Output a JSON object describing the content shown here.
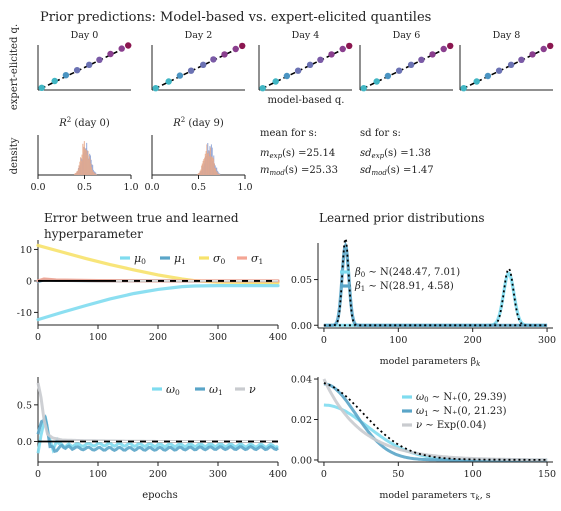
{
  "figure": {
    "title": "Prior predictions: Model-based vs. expert-elicited quantiles",
    "colors": {
      "mu0": "#7fdcef",
      "mu1": "#5aa5c8",
      "sigma0": "#f7e26b",
      "sigma1": "#f4a594",
      "omega0": "#7fdcef",
      "omega1": "#5aa5c8",
      "nu": "#c9cbcf",
      "scatter": [
        "#41b6c4",
        "#4a94c2",
        "#6b72b3",
        "#7a5aa6",
        "#8a3f8e",
        "#8b1650"
      ],
      "hist_exp": "#e8a98a",
      "hist_mod": "#8ea3d6",
      "ref": "#000000"
    }
  },
  "chart_data": [
    {
      "id": "qq",
      "type": "scatter",
      "ylabel": "expert-elicited q.",
      "xlabel": "model-based q.",
      "panels": [
        {
          "title": "Day 0",
          "points": [
            [
              0.04,
              0.05
            ],
            [
              0.18,
              0.2
            ],
            [
              0.3,
              0.33
            ],
            [
              0.42,
              0.44
            ],
            [
              0.55,
              0.56
            ],
            [
              0.66,
              0.67
            ],
            [
              0.78,
              0.8
            ],
            [
              0.9,
              0.92
            ],
            [
              0.97,
              0.99
            ]
          ]
        },
        {
          "title": "Day 2",
          "points": [
            [
              0.04,
              0.04
            ],
            [
              0.18,
              0.19
            ],
            [
              0.3,
              0.32
            ],
            [
              0.42,
              0.43
            ],
            [
              0.55,
              0.56
            ],
            [
              0.66,
              0.68
            ],
            [
              0.78,
              0.79
            ],
            [
              0.9,
              0.91
            ],
            [
              0.97,
              0.98
            ]
          ]
        },
        {
          "title": "Day 4",
          "points": [
            [
              0.04,
              0.04
            ],
            [
              0.18,
              0.19
            ],
            [
              0.3,
              0.31
            ],
            [
              0.42,
              0.43
            ],
            [
              0.55,
              0.56
            ],
            [
              0.66,
              0.67
            ],
            [
              0.78,
              0.79
            ],
            [
              0.9,
              0.91
            ],
            [
              0.97,
              0.98
            ]
          ]
        },
        {
          "title": "Day 6",
          "points": [
            [
              0.04,
              0.04
            ],
            [
              0.18,
              0.19
            ],
            [
              0.3,
              0.31
            ],
            [
              0.42,
              0.43
            ],
            [
              0.55,
              0.56
            ],
            [
              0.66,
              0.67
            ],
            [
              0.78,
              0.79
            ],
            [
              0.9,
              0.91
            ],
            [
              0.97,
              0.98
            ]
          ]
        },
        {
          "title": "Day 8",
          "points": [
            [
              0.04,
              0.04
            ],
            [
              0.18,
              0.19
            ],
            [
              0.3,
              0.31
            ],
            [
              0.42,
              0.43
            ],
            [
              0.55,
              0.56
            ],
            [
              0.66,
              0.67
            ],
            [
              0.78,
              0.79
            ],
            [
              0.9,
              0.91
            ],
            [
              0.97,
              0.98
            ]
          ]
        }
      ]
    },
    {
      "id": "r2",
      "type": "histogram",
      "ylabel": "density",
      "xticks": [
        "0.0",
        "0.5",
        "1.0"
      ],
      "xlim": [
        0,
        1
      ],
      "panels": [
        {
          "title": "R² (day 0)",
          "title_base": "R",
          "title_sup": "2",
          "title_rest": " (day 0)",
          "center": 0.5,
          "spread": 0.1
        },
        {
          "title": "R² (day 9)",
          "title_base": "R",
          "title_sup": "2",
          "title_rest": " (day 9)",
          "center": 0.6,
          "spread": 0.1
        }
      ]
    },
    {
      "id": "hyper",
      "type": "line",
      "title_lines": [
        "Error between true and learned",
        "hyperparameter"
      ],
      "xlim": [
        0,
        400
      ],
      "ylim": [
        -14,
        13
      ],
      "xticks": [
        0,
        100,
        200,
        300,
        400
      ],
      "yticks": [
        -10,
        0,
        10
      ],
      "series": [
        {
          "name": "μ0",
          "label_base": "μ",
          "label_sub": "0",
          "color_key": "mu0",
          "points": [
            [
              0,
              -12.3
            ],
            [
              40,
              -10
            ],
            [
              80,
              -7.8
            ],
            [
              120,
              -5.7
            ],
            [
              160,
              -4.0
            ],
            [
              200,
              -2.7
            ],
            [
              240,
              -1.8
            ],
            [
              260,
              -1.6
            ],
            [
              300,
              -1.5
            ],
            [
              400,
              -1.5
            ]
          ]
        },
        {
          "name": "μ1",
          "label_base": "μ",
          "label_sub": "1",
          "color_key": "mu1",
          "points": [
            [
              0,
              -0.2
            ],
            [
              10,
              0.4
            ],
            [
              30,
              0.2
            ],
            [
              100,
              0.05
            ],
            [
              200,
              0
            ],
            [
              300,
              -0.1
            ],
            [
              400,
              -0.1
            ]
          ]
        },
        {
          "name": "σ0",
          "label_base": "σ",
          "label_sub": "0",
          "color_key": "sigma0",
          "points": [
            [
              0,
              11.3
            ],
            [
              40,
              9.2
            ],
            [
              80,
              7.1
            ],
            [
              120,
              5.2
            ],
            [
              160,
              3.5
            ],
            [
              200,
              1.9
            ],
            [
              240,
              0.6
            ],
            [
              260,
              0.1
            ],
            [
              300,
              -0.4
            ],
            [
              400,
              -0.5
            ]
          ]
        },
        {
          "name": "σ1",
          "label_base": "σ",
          "label_sub": "1",
          "color_key": "sigma1",
          "points": [
            [
              0,
              0
            ],
            [
              10,
              0.6
            ],
            [
              30,
              0.3
            ],
            [
              100,
              0.1
            ],
            [
              200,
              0
            ],
            [
              300,
              0
            ],
            [
              400,
              0
            ]
          ]
        }
      ],
      "reference": 0
    },
    {
      "id": "prior_beta",
      "type": "line",
      "title": "Learned prior distributions",
      "xlabel": "model parameters β_k",
      "xlabel_base": "model parameters β",
      "xlabel_sub": "k",
      "xlim": [
        -8,
        308
      ],
      "ylim": [
        -0.003,
        0.09
      ],
      "xticks": [
        0,
        100,
        200,
        300
      ],
      "yticks": [
        0.0,
        0.05
      ],
      "ytick_labels": [
        "0.00",
        "0.05"
      ],
      "series": [
        {
          "name": "β0 ~ N(248.47, 7.01)",
          "color_key": "mu0",
          "mean": 248.47,
          "sd": 7.01
        },
        {
          "name": "β1 ~ N(28.91, 4.58)",
          "color_key": "mu1",
          "mean": 28.91,
          "sd": 4.58
        }
      ],
      "legend": [
        {
          "label": "β0 ~ N(248.47, 7.01)",
          "color_key": "mu0",
          "pre": "β",
          "sub": "0",
          "post": " ∼ N(248.47, 7.01)"
        },
        {
          "label": "β1 ~ N(28.91, 4.58)",
          "color_key": "mu1",
          "pre": "β",
          "sub": "1",
          "post": " ∼ N(28.91, 4.58)"
        }
      ],
      "reference": "dotted true densities"
    },
    {
      "id": "scale",
      "type": "line",
      "xlabel": "epochs",
      "xlim": [
        0,
        400
      ],
      "ylim": [
        -0.28,
        0.88
      ],
      "xticks": [
        0,
        100,
        200,
        300,
        400
      ],
      "yticks": [
        0.0,
        0.5
      ],
      "ytick_labels": [
        "0.0",
        "0.5"
      ],
      "series": [
        {
          "name": "ω0",
          "label_base": "ω",
          "label_sub": "0",
          "color_key": "omega0",
          "points": [
            [
              0,
              -0.18
            ],
            [
              5,
              0.1
            ],
            [
              12,
              0.35
            ],
            [
              18,
              0.05
            ],
            [
              25,
              -0.12
            ],
            [
              32,
              0.02
            ],
            [
              40,
              -0.06
            ],
            [
              60,
              -0.05
            ],
            [
              100,
              -0.04
            ],
            [
              200,
              -0.05
            ],
            [
              300,
              -0.05
            ],
            [
              400,
              -0.06
            ]
          ]
        },
        {
          "name": "ω1",
          "label_base": "ω",
          "label_sub": "1",
          "color_key": "omega1",
          "points": [
            [
              0,
              0.08
            ],
            [
              6,
              0.28
            ],
            [
              12,
              0.33
            ],
            [
              20,
              -0.05
            ],
            [
              28,
              -0.12
            ],
            [
              40,
              -0.07
            ],
            [
              60,
              -0.09
            ],
            [
              100,
              -0.1
            ],
            [
              200,
              -0.1
            ],
            [
              300,
              -0.09
            ],
            [
              400,
              -0.09
            ]
          ]
        },
        {
          "name": "ν",
          "label_base": "ν",
          "label_sub": "",
          "color_key": "nu",
          "points": [
            [
              0,
              0.8
            ],
            [
              5,
              0.6
            ],
            [
              10,
              0.3
            ],
            [
              16,
              0.1
            ],
            [
              24,
              0.05
            ],
            [
              40,
              0.02
            ],
            [
              80,
              0.01
            ],
            [
              200,
              0.0
            ],
            [
              300,
              0.0
            ],
            [
              400,
              0.0
            ]
          ]
        }
      ],
      "reference": 0
    },
    {
      "id": "prior_tau",
      "type": "line",
      "xlabel": "model parameters τ_k, s",
      "xlabel_base": "model parameters τ",
      "xlabel_sub": "k",
      "xlabel_post": ", s",
      "xlim": [
        -4,
        154
      ],
      "ylim": [
        -0.001,
        0.041
      ],
      "xticks": [
        0,
        50,
        100,
        150
      ],
      "yticks": [
        0.0,
        0.02,
        0.04
      ],
      "ytick_labels": [
        "0.00",
        "0.02",
        "0.04"
      ],
      "series": [
        {
          "name": "ω0 ~ N+(0, 29.39)",
          "color_key": "omega0",
          "dist": "halfnormal",
          "scale": 29.39
        },
        {
          "name": "ω1 ~ N+(0, 21.23)",
          "color_key": "omega1",
          "dist": "halfnormal",
          "scale": 21.23
        },
        {
          "name": "ν ~ Exp(0.04)",
          "color_key": "nu",
          "dist": "exp",
          "rate": 0.04
        }
      ],
      "legend": [
        {
          "label": "ω0 ~ N+(0, 29.39)",
          "color_key": "omega0",
          "pre": "ω",
          "sub": "0",
          "post": " ∼ N₊(0, 29.39)"
        },
        {
          "label": "ω1 ~ N+(0, 21.23)",
          "color_key": "omega1",
          "pre": "ω",
          "sub": "1",
          "post": " ∼ N₊(0, 21.23)"
        },
        {
          "label": "ν ~ Exp(0.04)",
          "color_key": "nu",
          "pre": "ν",
          "sub": "",
          "post": " ∼ Exp(0.04)"
        }
      ]
    }
  ],
  "stats": {
    "mean_title": "mean for s:",
    "sd_title": "sd for s:",
    "mean_exp": {
      "base": "m",
      "sub": "exp",
      "rest": "(s) =25.14"
    },
    "mean_mod": {
      "base": "m",
      "sub": "mod",
      "rest": "(s) =25.33"
    },
    "sd_exp": {
      "base": "sd",
      "sub": "exp",
      "rest": "(s) =1.38"
    },
    "sd_mod": {
      "base": "sd",
      "sub": "mod",
      "rest": "(s) =1.47"
    }
  }
}
